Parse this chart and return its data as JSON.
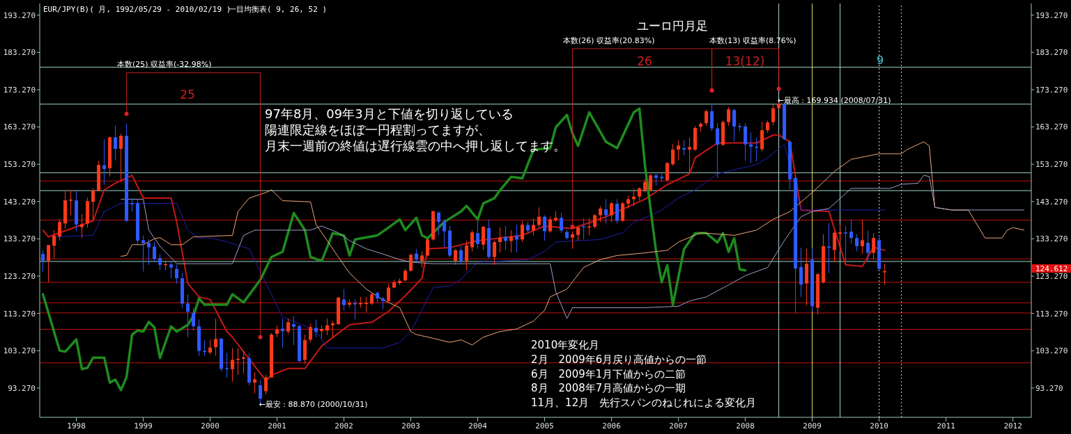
{
  "chart_data": {
    "type": "candlestick",
    "title": "ユーロ円月足",
    "annotations": [
      "EUR/JPY(B)( 月, 1992/05/29 - 2010/02/19 )",
      "一目均衡表( 9, 26, 52 )",
      "97年8月、09年3月と下値を切り返している",
      "陽連限定線をほぼ一円程割ってますが、",
      "月末一週前の終値は遅行線雲の中へ押し返してます。",
      "2010年変化月",
      "2月　2009年6月戻り高値からの一節",
      "6月　2009年1月下値からの二節",
      "8月　2008年7月高値からの一期",
      "11月、12月　先行スパンのねじれによる変化月",
      "本数(25) 収益率(-32.98%)",
      "25",
      "本数(26) 収益率(20.83%)",
      "26",
      "本数(13) 収益率(8.76%)",
      "13(12)",
      "9",
      {
        "text": "←最高 : 169.934 (2008/07/31)",
        "x": "2008-07",
        "y": 169.934
      },
      {
        "text": "←最安 : 88.870 (2000/10/31)",
        "x": "2000-10",
        "y": 88.87
      },
      "124.612"
    ],
    "xlim": [
      "1997-06-14",
      "2012-04-10"
    ],
    "xticks": [
      "1998",
      "1999",
      "2000",
      "2001",
      "2002",
      "2003",
      "2004",
      "2005",
      "2006",
      "2007",
      "2008",
      "2009",
      "2010",
      "2011",
      "2012"
    ],
    "ylim": [
      85.4,
      196.4
    ],
    "yticks": [
      {
        "value": 93.27,
        "label": "93.270"
      },
      {
        "value": 103.27,
        "label": "103.270"
      },
      {
        "value": 113.27,
        "label": "113.270"
      },
      {
        "value": 123.27,
        "label": "123.270"
      },
      {
        "value": 133.27,
        "label": "133.270"
      },
      {
        "value": 143.27,
        "label": "143.270"
      },
      {
        "value": 153.27,
        "label": "153.270"
      },
      {
        "value": 163.27,
        "label": "163.270"
      },
      {
        "value": 173.27,
        "label": "173.270"
      },
      {
        "value": 183.27,
        "label": "183.270"
      },
      {
        "value": 193.27,
        "label": "193.270"
      }
    ],
    "y2lim": [
      85.4,
      196.4
    ],
    "y2ticks": [
      {
        "value": 93.27,
        "label": "93.270"
      },
      {
        "value": 103.27,
        "label": "103.270"
      },
      {
        "value": 113.27,
        "label": "113.270"
      },
      {
        "value": 123.27,
        "label": "123.270"
      },
      {
        "value": 133.27,
        "label": "133.270"
      },
      {
        "value": 143.27,
        "label": "143.270"
      },
      {
        "value": 153.27,
        "label": "153.270"
      },
      {
        "value": 163.27,
        "label": "163.270"
      },
      {
        "value": 173.27,
        "label": "173.270"
      },
      {
        "value": 183.27,
        "label": "183.270"
      },
      {
        "value": 193.27,
        "label": "193.270"
      }
    ],
    "marker": "none",
    "ref_lines": [
      {
        "axis": "y",
        "value": 179.3,
        "color": "#9fd8c8"
      },
      {
        "axis": "y",
        "value": 169.4,
        "color": "#9fd8c8"
      },
      {
        "axis": "y",
        "value": 151.0,
        "color": "#9fd8c8"
      },
      {
        "axis": "y",
        "value": 146.2,
        "color": "#9fd8c8"
      },
      {
        "axis": "y",
        "value": 127.2,
        "color": "#9fd8c8"
      },
      {
        "axis": "y",
        "value": 148.8,
        "color": "#c01010"
      },
      {
        "axis": "y",
        "value": 138.3,
        "color": "#c01010"
      },
      {
        "axis": "y",
        "value": 127.9,
        "color": "#c01010"
      },
      {
        "axis": "y",
        "value": 121.6,
        "color": "#c01010"
      },
      {
        "axis": "y",
        "value": 116.1,
        "color": "#c01010"
      },
      {
        "axis": "y",
        "value": 113.4,
        "color": "#c01010"
      },
      {
        "axis": "y",
        "value": 109.0,
        "color": "#c01010"
      },
      {
        "axis": "y",
        "value": 100.0,
        "color": "#c01010"
      },
      {
        "axis": "x",
        "value": "2008-07",
        "color": "#b0d8d0"
      },
      {
        "axis": "x",
        "value": "2009-01",
        "color": "#e0e060"
      },
      {
        "axis": "x",
        "value": "2009-06",
        "color": "#b0d8d0"
      },
      {
        "axis": "x",
        "value": "2010-01",
        "color": "#e8e8e8",
        "line_style": "dotted"
      },
      {
        "axis": "x",
        "value": "2010-05",
        "color": "#e0e060",
        "line_style": "dotted"
      }
    ],
    "series": [
      {
        "type": "line",
        "color": "#c81818",
        "x": [
          "1997-07",
          "1997-08",
          "1998-04",
          "1998-06",
          "1998-08",
          "1998-11",
          "1999-01",
          "1999-06",
          "1999-07",
          "1999-09",
          "1999-11",
          "2000-01",
          "2000-04",
          "2000-05",
          "2000-11",
          "2000-12",
          "2001-03",
          "2001-06",
          "2001-09",
          "2001-12",
          "2002-02",
          "2002-06",
          "2002-09",
          "2002-12",
          "2003-03",
          "2003-04",
          "2003-08",
          "2004-01",
          "2004-09",
          "2005-01",
          "2005-06",
          "2005-12",
          "2006-07",
          "2006-11",
          "2007-03",
          "2007-04",
          "2007-08",
          "2008-03",
          "2008-06",
          "2008-07",
          "2008-09",
          "2008-11",
          "2009-04",
          "2009-07",
          "2009-10",
          "2009-11",
          "2009-12",
          "2010-02"
        ],
        "values": [
          135.6,
          133.8,
          138.1,
          146.4,
          148.2,
          150.3,
          144.2,
          144.2,
          137.8,
          121.3,
          117.7,
          117.0,
          108.4,
          106.9,
          95.2,
          96.7,
          98.5,
          98.5,
          104.5,
          108.0,
          110.2,
          110.9,
          113.8,
          118.0,
          122.7,
          130.6,
          130.9,
          132.8,
          134.2,
          136.7,
          136.0,
          139.2,
          143.9,
          147.8,
          150.7,
          155.0,
          159.0,
          159.0,
          161.1,
          161.1,
          159.3,
          141.0,
          140.6,
          126.3,
          125.9,
          128.5,
          131.0,
          130.2
        ]
      },
      {
        "type": "line",
        "color": "#2020b0",
        "x": [
          "1997-09",
          "1998-04",
          "1998-06",
          "1998-09",
          "1999-07",
          "1999-09",
          "1999-11",
          "2000-01",
          "2000-04",
          "2000-08",
          "2000-12",
          "2001-02",
          "2001-05",
          "2001-08",
          "2001-10",
          "2002-08",
          "2002-11",
          "2003-01",
          "2003-05",
          "2003-08",
          "2003-10",
          "2004-01",
          "2004-10",
          "2005-01",
          "2005-03",
          "2005-11",
          "2006-03",
          "2006-05",
          "2006-07",
          "2006-10",
          "2007-01",
          "2007-04",
          "2007-08",
          "2008-03",
          "2008-05",
          "2008-08",
          "2008-11",
          "2010-02"
        ],
        "values": [
          133.8,
          134.2,
          140.6,
          142.8,
          142.8,
          135.6,
          133.5,
          133.5,
          132.5,
          130.6,
          118.4,
          112.3,
          110.5,
          108.7,
          104.0,
          104.0,
          105.5,
          108.4,
          120.2,
          120.6,
          122.4,
          127.0,
          127.7,
          129.9,
          132.4,
          133.1,
          134.9,
          137.8,
          138.9,
          141.0,
          144.2,
          146.4,
          150.7,
          153.2,
          155.0,
          158.6,
          141.0,
          141.0
        ]
      },
      {
        "type": "line",
        "color": "#1e8c1e",
        "x": [
          "1997-07",
          "1997-10",
          "1997-11",
          "1998-01",
          "1998-02",
          "1998-03",
          "1998-04",
          "1998-06",
          "1998-07",
          "1998-08",
          "1998-09",
          "1998-10",
          "1998-11",
          "1998-12",
          "1999-01",
          "1999-02",
          "1999-03",
          "1999-04",
          "1999-06",
          "1999-07",
          "1999-09",
          "1999-10",
          "1999-11",
          "1999-12",
          "2000-04",
          "2000-05",
          "2000-07",
          "2000-10",
          "2000-12",
          "2001-02",
          "2001-04",
          "2001-06",
          "2001-07",
          "2001-09",
          "2001-11",
          "2002-01",
          "2002-02",
          "2002-03",
          "2002-04",
          "2002-07",
          "2002-09",
          "2002-11",
          "2002-12",
          "2003-02",
          "2003-03",
          "2003-04",
          "2003-07",
          "2003-10",
          "2003-11",
          "2004-01",
          "2004-02",
          "2004-04",
          "2004-05",
          "2004-07",
          "2004-09",
          "2004-11",
          "2005-02",
          "2005-03",
          "2005-05",
          "2005-06",
          "2005-07",
          "2005-09",
          "2005-12",
          "2006-02",
          "2006-05",
          "2006-06",
          "2006-07",
          "2006-09",
          "2006-10",
          "2006-11",
          "2006-12",
          "2007-02",
          "2007-04",
          "2007-06",
          "2007-08",
          "2007-09",
          "2007-10",
          "2007-11",
          "2007-12",
          "2008-01"
        ],
        "values": [
          118.4,
          103.3,
          103.0,
          106.3,
          98.3,
          98.7,
          101.4,
          101.4,
          94.7,
          95.5,
          92.7,
          96.2,
          107.6,
          108.7,
          108.4,
          111.0,
          109.5,
          101.3,
          109.8,
          108.4,
          110.2,
          112.6,
          117.3,
          115.6,
          115.6,
          118.4,
          116.2,
          122.3,
          128.4,
          129.8,
          140.2,
          135.6,
          128.4,
          127.3,
          134.8,
          134.2,
          128.8,
          133.1,
          133.4,
          134.2,
          136.3,
          138.5,
          135.6,
          138.9,
          134.2,
          133.4,
          137.8,
          140.6,
          142.1,
          138.5,
          142.8,
          144.2,
          146.3,
          149.9,
          149.5,
          157.2,
          157.6,
          163.2,
          166.5,
          161.5,
          158.2,
          167.2,
          159.3,
          157.6,
          167.2,
          168.2,
          152.9,
          129.8,
          121.6,
          126.2,
          115.6,
          130.5,
          134.8,
          134.8,
          132.3,
          134.8,
          129.8,
          133.4,
          125.1,
          124.8
        ]
      },
      {
        "type": "line",
        "color": "#f0a878",
        "x": [
          "1998-09",
          "1998-10",
          "1998-11",
          "1999-01",
          "1999-03",
          "1999-04",
          "1999-06",
          "1999-08",
          "1999-10",
          "2000-05",
          "2000-06",
          "2000-08",
          "2000-11",
          "2000-12",
          "2001-02",
          "2001-07",
          "2001-08",
          "2001-10",
          "2001-12",
          "2002-02",
          "2002-05",
          "2002-08",
          "2002-11",
          "2003-01",
          "2003-02",
          "2003-05",
          "2003-08",
          "2003-10",
          "2003-12",
          "2004-02",
          "2004-05",
          "2004-08",
          "2004-11",
          "2005-01",
          "2005-02",
          "2005-05",
          "2005-08",
          "2005-11",
          "2006-02",
          "2006-07",
          "2006-11",
          "2007-01",
          "2007-05",
          "2007-11",
          "2008-03",
          "2008-06",
          "2008-09",
          "2009-01",
          "2009-03",
          "2009-05",
          "2009-08",
          "2010-01",
          "2010-05",
          "2010-06",
          "2010-09",
          "2010-10",
          "2010-11",
          "2011-02",
          "2011-05",
          "2011-08",
          "2011-11",
          "2011-12",
          "2012-01",
          "2012-03"
        ],
        "values": [
          128.6,
          128.8,
          131.7,
          131.7,
          133.3,
          133.6,
          131.7,
          131.7,
          133.8,
          134.2,
          140.6,
          144.2,
          145.7,
          146.4,
          143.5,
          143.2,
          137.1,
          132.8,
          128.4,
          124.1,
          119.8,
          116.9,
          114.8,
          108.4,
          107.6,
          106.6,
          105.5,
          106.2,
          104.8,
          106.9,
          108.4,
          109.1,
          111.2,
          114.1,
          117.7,
          119.8,
          125.6,
          127.7,
          128.8,
          129.5,
          130.2,
          132.4,
          134.9,
          134.2,
          135.6,
          138.5,
          140.6,
          145.7,
          148.5,
          151.4,
          154.6,
          156.1,
          156.1,
          157.2,
          159.3,
          158.2,
          141.7,
          141.0,
          141.0,
          133.5,
          133.5,
          135.6,
          136.3,
          135.6
        ]
      },
      {
        "type": "line",
        "color": "#a0a0c8",
        "x": [
          "1998-09",
          "1999-01",
          "1999-02",
          "1999-04",
          "1999-07",
          "2000-05",
          "2000-07",
          "2000-09",
          "2001-07",
          "2001-09",
          "2001-12",
          "2002-02",
          "2002-05",
          "2002-08",
          "2002-11",
          "2003-01",
          "2003-05",
          "2005-02",
          "2005-03",
          "2005-05",
          "2005-06",
          "2006-07",
          "2007-01",
          "2007-03",
          "2007-06",
          "2007-10",
          "2008-01",
          "2008-05",
          "2008-08",
          "2008-11",
          "2009-01",
          "2009-04",
          "2009-08",
          "2010-03",
          "2010-05",
          "2010-08",
          "2010-09",
          "2010-10",
          "2010-11",
          "2011-02",
          "2012-03"
        ],
        "values": [
          143.9,
          143.9,
          135.6,
          131.3,
          126.6,
          126.6,
          134.2,
          135.6,
          135.6,
          136.7,
          134.9,
          132.8,
          130.6,
          129.2,
          127.7,
          127.0,
          126.6,
          126.6,
          119.1,
          111.9,
          114.8,
          114.8,
          115.2,
          116.6,
          117.7,
          120.9,
          123.4,
          125.6,
          132.8,
          139.2,
          140.6,
          141.4,
          146.8,
          146.8,
          147.9,
          148.2,
          150.3,
          150.0,
          141.7,
          141.0,
          141.0
        ]
      },
      {
        "color": "#ff3a1a",
        "x": [
          "1997-08",
          "1997-09",
          "1997-10",
          "1997-11",
          "1997-12",
          "1998-02",
          "1998-03",
          "1998-04",
          "1998-05",
          "1998-07",
          "1998-09",
          "1999-05",
          "2000-01",
          "2000-02",
          "2000-05",
          "2000-06",
          "2000-07",
          "2000-09",
          "2000-11",
          "2000-12",
          "2001-01",
          "2001-03",
          "2001-06",
          "2001-07",
          "2001-09",
          "2001-10",
          "2001-11",
          "2001-12",
          "2002-02",
          "2002-04",
          "2002-05",
          "2002-06",
          "2002-09",
          "2002-10",
          "2002-11",
          "2002-12",
          "2003-01",
          "2003-03",
          "2003-04",
          "2003-05",
          "2003-09",
          "2003-11",
          "2003-12",
          "2004-02",
          "2004-04",
          "2004-05",
          "2004-07",
          "2004-09",
          "2004-11",
          "2004-12",
          "2005-02",
          "2005-03",
          "2005-06",
          "2005-07",
          "2005-09",
          "2005-10",
          "2005-11",
          "2006-01",
          "2006-03",
          "2006-04",
          "2006-05",
          "2006-06",
          "2006-07",
          "2006-08",
          "2006-11",
          "2006-12",
          "2007-01",
          "2007-03",
          "2007-04",
          "2007-05",
          "2007-06",
          "2007-09",
          "2007-10",
          "2008-04",
          "2008-05",
          "2008-06",
          "2008-07",
          "2008-12",
          "2009-02",
          "2009-03",
          "2009-05",
          "2009-06",
          "2009-10",
          "2009-12",
          "2010-02"
        ],
        "ohlc": [
          [
            127.4,
            131.6,
            121.6,
            131.6
          ],
          [
            131.4,
            135.6,
            128,
            134.1
          ],
          [
            133.9,
            138.5,
            132.8,
            137.8
          ],
          [
            137.4,
            146,
            136,
            143.6
          ],
          [
            143.5,
            146.3,
            139.6,
            143.8
          ],
          [
            136.4,
            139.9,
            133.5,
            137.2
          ],
          [
            137.4,
            144.3,
            136.3,
            143.4
          ],
          [
            143.2,
            146.8,
            138.5,
            146.2
          ],
          [
            146.2,
            154.2,
            146,
            153.1
          ],
          [
            152.2,
            160.7,
            150,
            160.5
          ],
          [
            157.4,
            161.5,
            148.5,
            160.9
          ],
          [
            126.3,
            127.3,
            124.9,
            126.5
          ],
          [
            102.8,
            106.2,
            102.3,
            104.1
          ],
          [
            104.2,
            111.9,
            101.9,
            106.4
          ],
          [
            98.3,
            104,
            95,
            100.8
          ],
          [
            100.8,
            104,
            96.8,
            101.1
          ],
          [
            101.1,
            103.3,
            97.2,
            101.5
          ],
          [
            94.7,
            97.5,
            91.8,
            95.6
          ],
          [
            92.4,
            96.8,
            91.5,
            96.1
          ],
          [
            96.1,
            108,
            96.1,
            107.6
          ],
          [
            107.8,
            110,
            106.9,
            108.9
          ],
          [
            108.4,
            111.9,
            107.7,
            110.9
          ],
          [
            100.8,
            107.6,
            99.7,
            106.1
          ],
          [
            106.2,
            110.5,
            105.5,
            109.6
          ],
          [
            108.5,
            110.1,
            106.6,
            109.1
          ],
          [
            108.7,
            111.9,
            107.4,
            110.1
          ],
          [
            110.1,
            111.2,
            106.9,
            110.6
          ],
          [
            110.4,
            117.7,
            110.1,
            117.5
          ],
          [
            115.6,
            117,
            114.8,
            116.1
          ],
          [
            115.7,
            117.7,
            114.8,
            116
          ],
          [
            115.8,
            117.7,
            113.7,
            116.1
          ],
          [
            115.9,
            118.8,
            115.5,
            118.4
          ],
          [
            116.6,
            121.3,
            116.2,
            120.2
          ],
          [
            120.2,
            122.3,
            120,
            121.6
          ],
          [
            121.4,
            122.7,
            120.9,
            122
          ],
          [
            122.1,
            125.2,
            121.9,
            124.7
          ],
          [
            124.7,
            129.2,
            124.5,
            129
          ],
          [
            127.4,
            129.9,
            125.6,
            128.8
          ],
          [
            128.8,
            133.5,
            128.5,
            133.1
          ],
          [
            133.1,
            140.7,
            132.8,
            140.7
          ],
          [
            127.4,
            130.6,
            126.3,
            130.2
          ],
          [
            127.4,
            132.8,
            124.9,
            131.5
          ],
          [
            131,
            135.6,
            129.9,
            135
          ],
          [
            131.7,
            136.7,
            130.3,
            136.5
          ],
          [
            128.4,
            132.8,
            126.3,
            132.4
          ],
          [
            132.4,
            136.3,
            129.6,
            133.6
          ],
          [
            132.7,
            135.6,
            129.6,
            133.8
          ],
          [
            133.1,
            138.1,
            132.4,
            137.1
          ],
          [
            135.5,
            138.8,
            134.2,
            137
          ],
          [
            137,
            141.7,
            136.4,
            139.2
          ],
          [
            135.3,
            139.2,
            134.9,
            138.5
          ],
          [
            138.2,
            140.7,
            137.8,
            138.9
          ],
          [
            133.6,
            135.3,
            130.6,
            134.5
          ],
          [
            134.3,
            136.7,
            132.8,
            136.3
          ],
          [
            136.5,
            138.8,
            134.2,
            136.6
          ],
          [
            136.5,
            139.9,
            136,
            139.6
          ],
          [
            139.6,
            142.1,
            137.8,
            141.4
          ],
          [
            139.6,
            143.2,
            137.8,
            142.8
          ],
          [
            138.1,
            143.2,
            137.8,
            142.8
          ],
          [
            142.7,
            144.9,
            141.4,
            143.9
          ],
          [
            143.9,
            146.7,
            142.1,
            144.6
          ],
          [
            144.6,
            147.1,
            143.5,
            146.8
          ],
          [
            146.2,
            149.3,
            145.7,
            148.5
          ],
          [
            146.4,
            150.7,
            146,
            150.3
          ],
          [
            149,
            153.9,
            148.6,
            153.6
          ],
          [
            153.3,
            158.7,
            152.9,
            157.2
          ],
          [
            157.2,
            159.7,
            154.3,
            158.3
          ],
          [
            157.2,
            160.4,
            151.1,
            157.9
          ],
          [
            157.2,
            163.6,
            156.8,
            163
          ],
          [
            163.3,
            164.5,
            162,
            164.1
          ],
          [
            164.3,
            167.9,
            163.6,
            167.5
          ],
          [
            158.5,
            165,
            158.2,
            164.6
          ],
          [
            164.6,
            168.6,
            163.6,
            168
          ],
          [
            157.3,
            164.7,
            156.8,
            162.4
          ],
          [
            162.4,
            165,
            161.7,
            164.5
          ],
          [
            164.6,
            169.5,
            163.7,
            168.3
          ],
          [
            168.3,
            169.934,
            168.1,
            169.5
          ],
          [
            121.3,
            130.6,
            115.4,
            126.6
          ],
          [
            114.8,
            124.1,
            113,
            123.8
          ],
          [
            121.6,
            134.5,
            121.3,
            131.3
          ],
          [
            130.3,
            135.3,
            127,
            134.9
          ],
          [
            134.6,
            137.1,
            129.9,
            135
          ],
          [
            131.3,
            138.5,
            129.2,
            132.9
          ],
          [
            129.5,
            134.8,
            127.7,
            133.5
          ],
          [
            124.3,
            126.6,
            120.9,
            124.612
          ]
        ]
      },
      {
        "color": "#2f5bff",
        "x": [
          "1997-07",
          "1998-01",
          "1998-06",
          "1998-08",
          "1998-10",
          "1998-11",
          "1998-12",
          "1999-01",
          "1999-02",
          "1999-03",
          "1999-04",
          "1999-06",
          "1999-07",
          "1999-08",
          "1999-09",
          "1999-10",
          "1999-11",
          "1999-12",
          "2000-03",
          "2000-04",
          "2000-08",
          "2000-10",
          "2001-02",
          "2001-04",
          "2001-05",
          "2001-08",
          "2002-01",
          "2002-03",
          "2002-07",
          "2002-08",
          "2003-02",
          "2003-06",
          "2003-07",
          "2003-08",
          "2003-10",
          "2004-01",
          "2004-03",
          "2004-06",
          "2004-08",
          "2004-10",
          "2005-01",
          "2005-04",
          "2005-05",
          "2005-08",
          "2005-12",
          "2006-02",
          "2006-09",
          "2006-10",
          "2007-02",
          "2007-07",
          "2007-08",
          "2007-11",
          "2007-12",
          "2008-01",
          "2008-02",
          "2008-03",
          "2008-08",
          "2008-09",
          "2008-10",
          "2008-11",
          "2009-01",
          "2009-04",
          "2009-07",
          "2009-08",
          "2009-09",
          "2009-11",
          "2010-01"
        ],
        "ohlc": [
          [
            129.2,
            130.2,
            124.5,
            127.4
          ],
          [
            143.6,
            146,
            135.3,
            137.1
          ],
          [
            153,
            160,
            147.8,
            152
          ],
          [
            160.5,
            163.6,
            154.3,
            157.4
          ],
          [
            160.9,
            164.2,
            137.8,
            138.1
          ],
          [
            142.8,
            144.2,
            140.6,
            142.6
          ],
          [
            142.8,
            143.9,
            131.7,
            132.8
          ],
          [
            132.9,
            134.2,
            124.5,
            132.1
          ],
          [
            132.2,
            133.1,
            126.3,
            131
          ],
          [
            131.2,
            132.4,
            127,
            127.9
          ],
          [
            128.1,
            129.2,
            124.9,
            126.3
          ],
          [
            126.4,
            127.3,
            122.7,
            125.6
          ],
          [
            125.2,
            126.3,
            121.3,
            122.7
          ],
          [
            122.7,
            124.1,
            114.8,
            115.9
          ],
          [
            115.9,
            118.4,
            106.9,
            113.7
          ],
          [
            113.4,
            114.8,
            108.7,
            109.8
          ],
          [
            109.8,
            111.6,
            101.9,
            103.2
          ],
          [
            103.2,
            106.2,
            101.9,
            103
          ],
          [
            106.5,
            106.6,
            97.7,
            98.4
          ],
          [
            98.6,
            102.7,
            96.1,
            98.4
          ],
          [
            101.3,
            102.6,
            94,
            94.7
          ],
          [
            94,
            95.4,
            88.87,
            90.4
          ],
          [
            109.2,
            111.9,
            104.1,
            108.5
          ],
          [
            110.4,
            112.6,
            104.8,
            109.7
          ],
          [
            109.9,
            110.1,
            100.1,
            100.5
          ],
          [
            109.4,
            111.6,
            106.9,
            108.3
          ],
          [
            117,
            119.8,
            114.1,
            115.5
          ],
          [
            116,
            117,
            111.6,
            115.8
          ],
          [
            118.8,
            119.1,
            116.2,
            117.3
          ],
          [
            117.3,
            117.7,
            114.4,
            116.6
          ],
          [
            129.3,
            130.6,
            127,
            127.7
          ],
          [
            140.3,
            140.7,
            134.2,
            137.8
          ],
          [
            137.9,
            138.5,
            131,
            135.3
          ],
          [
            135.5,
            136.7,
            128.4,
            128.8
          ],
          [
            130.2,
            131.3,
            126.3,
            127.4
          ],
          [
            134.8,
            138.5,
            130.6,
            131.9
          ],
          [
            136.2,
            138.5,
            128.1,
            128.4
          ],
          [
            133.8,
            136.7,
            130.3,
            132.7
          ],
          [
            134.2,
            137.1,
            129.6,
            133.1
          ],
          [
            137,
            137.8,
            134.9,
            135.5
          ],
          [
            139.2,
            139.6,
            132.8,
            135.3
          ],
          [
            138.9,
            140.3,
            134.9,
            135.5
          ],
          [
            135.1,
            135.6,
            133.1,
            133.5
          ],
          [
            136.6,
            138.8,
            133.1,
            136.4
          ],
          [
            141.2,
            143.9,
            137.4,
            139.6
          ],
          [
            142.7,
            143.9,
            137.4,
            138.1
          ],
          [
            150.3,
            150.7,
            147.5,
            149.6
          ],
          [
            149.9,
            151,
            148.5,
            149.5
          ],
          [
            157.6,
            159.7,
            155.7,
            157.2
          ],
          [
            167.5,
            169.6,
            162.2,
            162.9
          ],
          [
            162.9,
            164.3,
            149.6,
            158.5
          ],
          [
            167.8,
            168.2,
            159.4,
            163.4
          ],
          [
            163.5,
            164.3,
            162.2,
            163.3
          ],
          [
            163.4,
            164.3,
            154.3,
            158.6
          ],
          [
            158.6,
            161.8,
            153.6,
            158
          ],
          [
            158,
            160.4,
            154,
            157.8
          ],
          [
            169.5,
            169.6,
            159.7,
            160
          ],
          [
            159.3,
            159.7,
            146.6,
            149.2
          ],
          [
            149.6,
            149.8,
            113.3,
            125.3
          ],
          [
            125.7,
            130.9,
            117.7,
            121
          ],
          [
            127.7,
            130.9,
            113.8,
            115.2
          ],
          [
            131.2,
            137.4,
            124.1,
            130.9
          ],
          [
            135,
            136.7,
            126.6,
            134.8
          ],
          [
            135.2,
            138.6,
            132,
            133.5
          ],
          [
            133.5,
            134.5,
            129.9,
            131.3
          ],
          [
            132.2,
            135.5,
            127,
            129.5
          ],
          [
            132.9,
            134.2,
            124.8,
            125.2
          ]
        ]
      }
    ]
  }
}
